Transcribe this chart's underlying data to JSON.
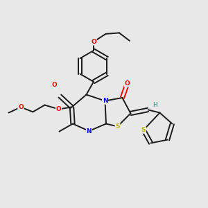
{
  "bg_color": "#e8e8e8",
  "bond_color": "#1a1a1a",
  "atom_colors": {
    "O": "#ff0000",
    "N": "#0000ee",
    "S": "#b8b800",
    "H": "#6aabab",
    "C": "#1a1a1a"
  },
  "lw": 1.4,
  "fs": 6.5
}
